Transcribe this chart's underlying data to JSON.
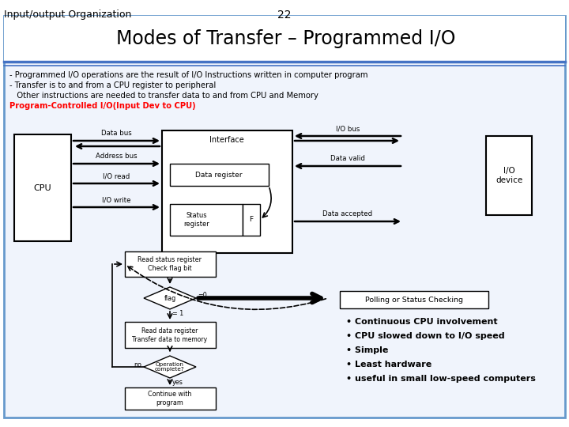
{
  "title_left": "Input/output Organization",
  "title_center": "22",
  "slide_title": "Modes of Transfer – Programmed I/O",
  "bg_color": "#ffffff",
  "slide_bg": "#f0f4fc",
  "border_color": "#6699cc",
  "text_lines": [
    "- Programmed I/O operations are the result of I/O Instructions written in computer program",
    "- Transfer is to and from a CPU register to peripheral",
    "   Other instructions are needed to transfer data to and from CPU and Memory"
  ],
  "red_text": "Program-Controlled I/O(Input Dev to CPU)",
  "bullet_points": [
    "Continuous CPU involvement",
    "CPU slowed down to I/O speed",
    "Simple",
    "Least hardware",
    "useful in small low-speed computers"
  ],
  "polling_label": "Polling or Status Checking"
}
